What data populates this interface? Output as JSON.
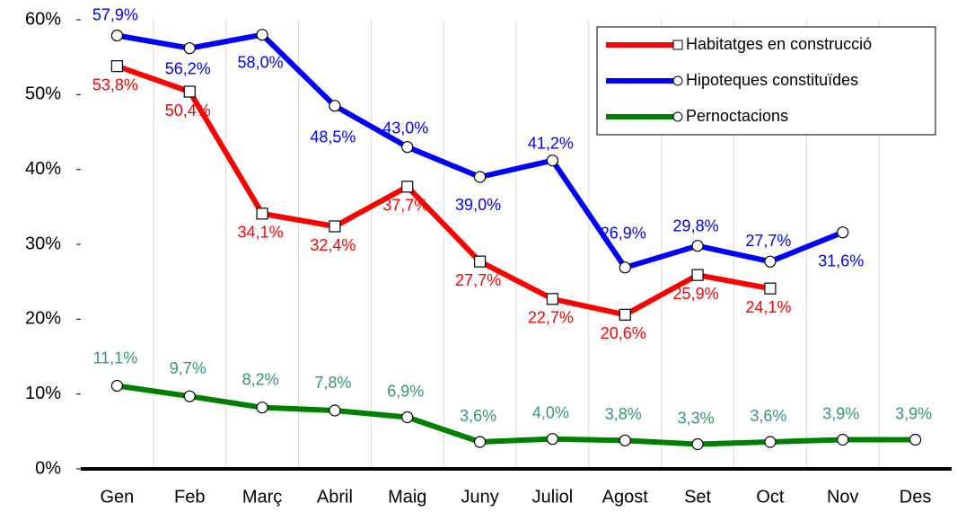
{
  "chart_data": {
    "type": "line",
    "categories": [
      "Gen",
      "Feb",
      "Març",
      "Abril",
      "Maig",
      "Juny",
      "Juliol",
      "Agost",
      "Set",
      "Oct",
      "Nov",
      "Des"
    ],
    "ylim": [
      0,
      60
    ],
    "yticks": [
      {
        "value": 0,
        "label": "0%"
      },
      {
        "value": 10,
        "label": "10%"
      },
      {
        "value": 20,
        "label": "20%"
      },
      {
        "value": 30,
        "label": "30%"
      },
      {
        "value": 40,
        "label": "40%"
      },
      {
        "value": 50,
        "label": "50%"
      },
      {
        "value": 60,
        "label": "60%"
      }
    ],
    "legend": "upper right",
    "series": [
      {
        "name": "Habitatges en construcció",
        "color": "#ff0000",
        "marker": "square",
        "values": [
          53.8,
          50.4,
          34.1,
          32.4,
          37.7,
          27.7,
          22.7,
          20.6,
          25.9,
          24.1,
          null,
          null
        ],
        "value_labels": [
          "53,8%",
          "50,4%",
          "34,1%",
          "32,4%",
          "37,7%",
          "27,7%",
          "22,7%",
          "20,6%",
          "25,9%",
          "24,1%",
          null,
          null
        ]
      },
      {
        "name": "Hipoteques constituïdes",
        "color": "#0000ff",
        "marker": "circle",
        "values": [
          57.9,
          56.2,
          58.0,
          48.5,
          43.0,
          39.0,
          41.2,
          26.9,
          29.8,
          27.7,
          31.6,
          null
        ],
        "value_labels": [
          "57,9%",
          "56,2%",
          "58,0%",
          "48,5%",
          "43,0%",
          "39,0%",
          "41,2%",
          "26,9%",
          "29,8%",
          "27,7%",
          "31,6%",
          null
        ]
      },
      {
        "name": "Pernoctacions",
        "color": "#008000",
        "label_color": "#339966",
        "marker": "circle",
        "values": [
          11.1,
          9.7,
          8.2,
          7.8,
          6.9,
          3.6,
          4.0,
          3.8,
          3.3,
          3.6,
          3.9,
          3.9
        ],
        "value_labels": [
          "11,1%",
          "9,7%",
          "8,2%",
          "7,8%",
          "6,9%",
          "3,6%",
          "4,0%",
          "3,8%",
          "3,3%",
          "3,6%",
          "3,9%",
          "3,9%"
        ]
      }
    ]
  }
}
